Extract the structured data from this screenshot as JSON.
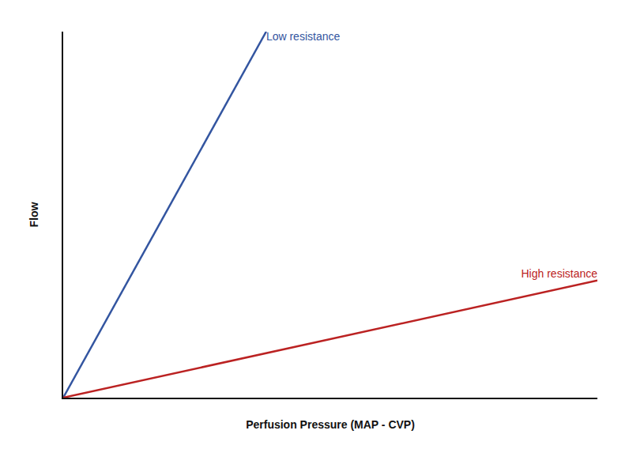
{
  "chart_data": {
    "type": "line",
    "xlabel": "Perfusion Pressure (MAP - CVP)",
    "ylabel": "Flow",
    "xlim": [
      0,
      10
    ],
    "ylim": [
      0,
      10
    ],
    "xticks": [],
    "yticks": [],
    "tick_labels": false,
    "grid": false,
    "series": [
      {
        "name": "Low resistance",
        "color": "#3355a0",
        "x": [
          0,
          3.8
        ],
        "values": [
          0,
          10
        ]
      },
      {
        "name": "High resistance",
        "color": "#bb2222",
        "x": [
          0,
          10
        ],
        "values": [
          0,
          3.2
        ]
      }
    ]
  }
}
